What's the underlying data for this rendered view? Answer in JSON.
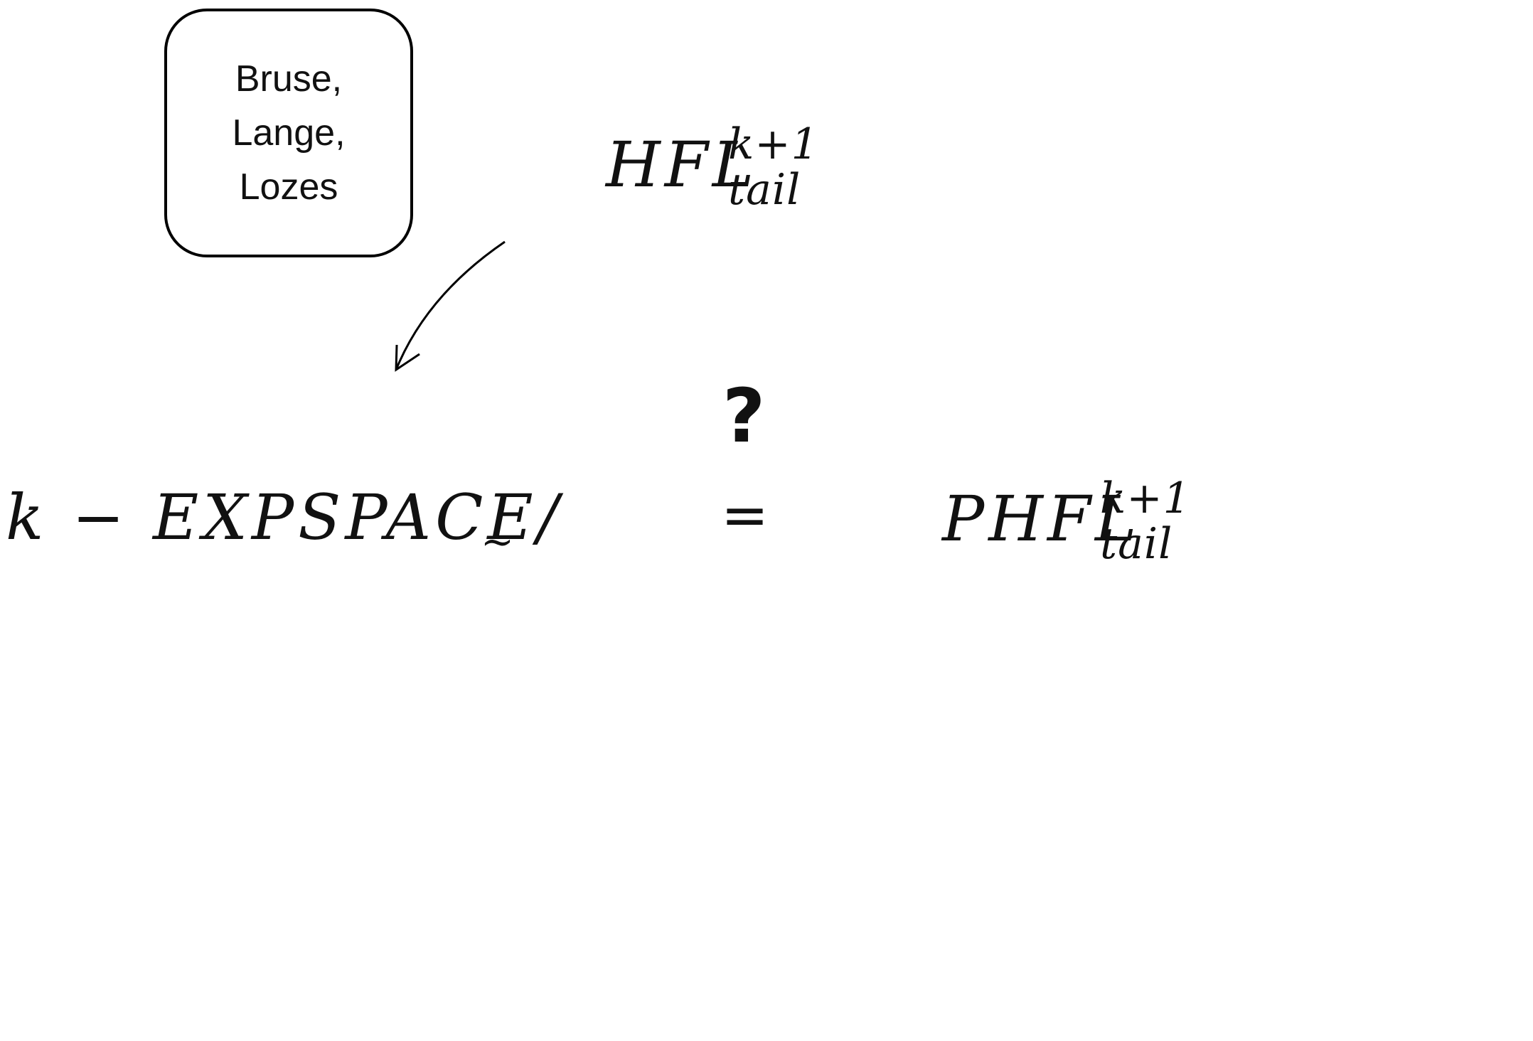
{
  "box": {
    "lines": [
      "Bruse,",
      "Lange,",
      "Lozes"
    ]
  },
  "top_formula": {
    "base": "HFL",
    "superscript": "k+1",
    "subscript": "tail"
  },
  "question_mark": "?",
  "equals": "=",
  "left_formula": {
    "text": "k − EXPSPACE/",
    "subscript": "~"
  },
  "right_formula": {
    "base": "PHFL",
    "superscript": "k+1",
    "subscript": "tail"
  },
  "colors": {
    "ink": "#111111",
    "background": "#ffffff"
  }
}
